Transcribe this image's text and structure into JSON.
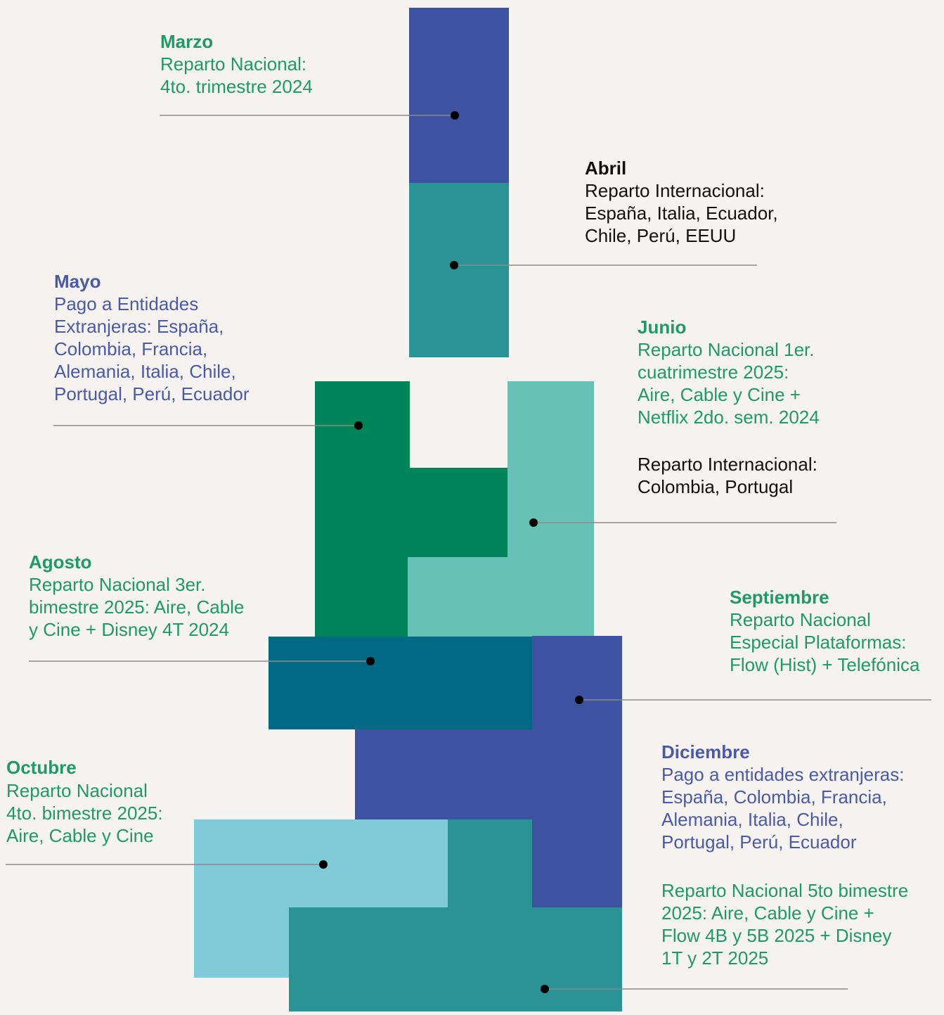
{
  "events": [
    {
      "title": "Marzo",
      "paragraphs": [
        {
          "lines": [
            "Reparto Nacional:",
            "4to. trimestre 2024"
          ]
        }
      ]
    },
    {
      "title": "Abril",
      "paragraphs": [
        {
          "lines": [
            "Reparto Internacional:",
            "España, Italia, Ecuador,",
            "Chile, Perú, EEUU"
          ]
        }
      ]
    },
    {
      "title": "Mayo",
      "paragraphs": [
        {
          "lines": [
            "Pago a Entidades",
            "Extranjeras: España,",
            "Colombia, Francia,",
            "Alemania, Italia, Chile,",
            "Portugal, Perú, Ecuador"
          ]
        }
      ]
    },
    {
      "title": "Junio",
      "paragraphs": [
        {
          "lines": [
            "Reparto Nacional 1er.",
            "cuatrimestre 2025:",
            "Aire, Cable y Cine +",
            "Netflix 2do. sem. 2024"
          ]
        },
        {
          "lines": [
            "Reparto Internacional:",
            "Colombia, Portugal"
          ]
        }
      ]
    },
    {
      "title": "Agosto",
      "paragraphs": [
        {
          "lines": [
            "Reparto Nacional 3er.",
            "bimestre 2025: Aire, Cable",
            "y Cine + Disney 4T 2024"
          ]
        }
      ]
    },
    {
      "title": "Septiembre",
      "paragraphs": [
        {
          "lines": [
            "Reparto Nacional",
            "Especial Plataformas:",
            "Flow (Hist) + Telefónica"
          ]
        }
      ]
    },
    {
      "title": "Octubre",
      "paragraphs": [
        {
          "lines": [
            "Reparto Nacional",
            "4to. bimestre 2025:",
            "Aire, Cable y Cine"
          ]
        }
      ]
    },
    {
      "title": "Diciembre",
      "paragraphs": [
        {
          "lines": [
            "Pago a entidades extranjeras:",
            "España, Colombia, Francia,",
            "Alemania, Italia, Chile,",
            "Portugal, Perú, Ecuador"
          ]
        },
        {
          "lines": [
            "Reparto Nacional 5to bimestre",
            "2025: Aire, Cable y Cine +",
            "Flow 4B y 5B 2025 + Disney",
            "1T y 2T 2025"
          ]
        }
      ]
    }
  ]
}
